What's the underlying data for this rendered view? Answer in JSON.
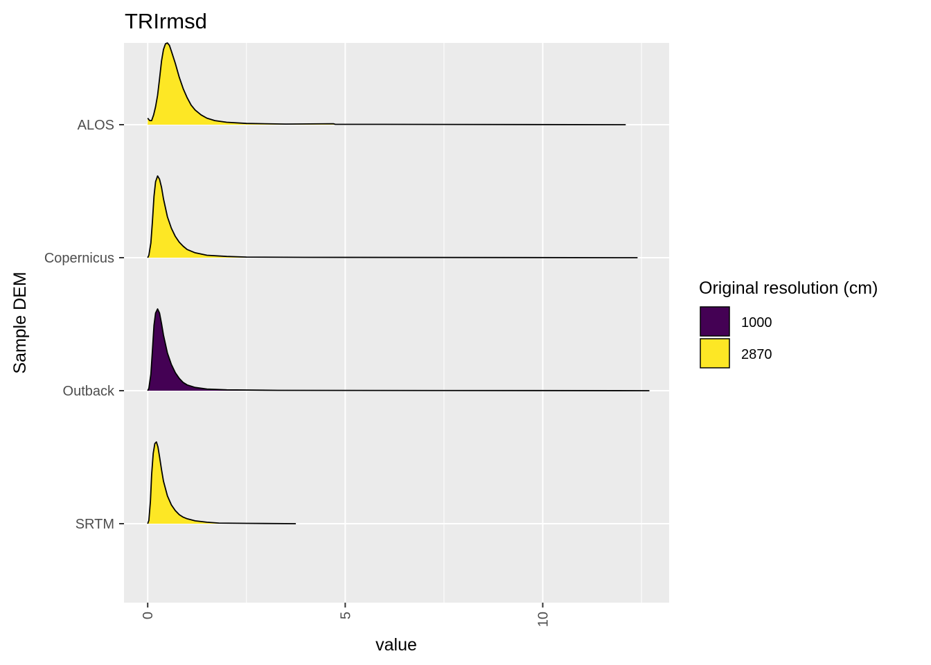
{
  "chart_data": {
    "type": "ridgeline",
    "title": "TRIrmsd",
    "xlabel": "value",
    "ylabel": "Sample DEM",
    "xlim": [
      -0.6,
      13.2
    ],
    "x_ticks": [
      0,
      5,
      10
    ],
    "x_tick_labels": [
      "0",
      "5",
      "10"
    ],
    "x_minor_ticks": [
      2.5,
      7.5,
      12.5
    ],
    "x_tick_label_rotation": -90,
    "categories": [
      "ALOS",
      "Copernicus",
      "Outback",
      "SRTM"
    ],
    "grid": true,
    "legend": {
      "title": "Original resolution (cm)",
      "placement": "right",
      "entries": [
        {
          "label": "1000",
          "color": "#440154"
        },
        {
          "label": "2870",
          "color": "#FDE725"
        }
      ]
    },
    "series": [
      {
        "category": "ALOS",
        "group": "2870",
        "color": "#FDE725",
        "x_range": [
          0.0,
          12.1
        ],
        "density": [
          [
            0.0,
            0.08
          ],
          [
            0.05,
            0.05
          ],
          [
            0.1,
            0.05
          ],
          [
            0.15,
            0.12
          ],
          [
            0.2,
            0.22
          ],
          [
            0.25,
            0.36
          ],
          [
            0.3,
            0.56
          ],
          [
            0.35,
            0.78
          ],
          [
            0.4,
            0.92
          ],
          [
            0.45,
            0.99
          ],
          [
            0.5,
            1.0
          ],
          [
            0.55,
            0.97
          ],
          [
            0.6,
            0.9
          ],
          [
            0.7,
            0.75
          ],
          [
            0.8,
            0.58
          ],
          [
            0.9,
            0.44
          ],
          [
            1.0,
            0.33
          ],
          [
            1.1,
            0.24
          ],
          [
            1.2,
            0.18
          ],
          [
            1.35,
            0.12
          ],
          [
            1.5,
            0.08
          ],
          [
            1.7,
            0.05
          ],
          [
            2.0,
            0.03
          ],
          [
            2.5,
            0.015
          ],
          [
            3.5,
            0.008
          ],
          [
            4.7,
            0.012
          ],
          [
            4.75,
            0.004
          ],
          [
            6.0,
            0.004
          ],
          [
            12.1,
            0.0
          ]
        ]
      },
      {
        "category": "Copernicus",
        "group": "2870",
        "color": "#FDE725",
        "x_range": [
          0.0,
          12.4
        ],
        "density": [
          [
            0.0,
            0.0
          ],
          [
            0.03,
            0.03
          ],
          [
            0.08,
            0.18
          ],
          [
            0.12,
            0.45
          ],
          [
            0.16,
            0.75
          ],
          [
            0.2,
            0.93
          ],
          [
            0.25,
            1.0
          ],
          [
            0.3,
            0.96
          ],
          [
            0.35,
            0.86
          ],
          [
            0.4,
            0.72
          ],
          [
            0.5,
            0.5
          ],
          [
            0.6,
            0.36
          ],
          [
            0.7,
            0.26
          ],
          [
            0.8,
            0.19
          ],
          [
            0.9,
            0.14
          ],
          [
            1.0,
            0.1
          ],
          [
            1.2,
            0.06
          ],
          [
            1.5,
            0.03
          ],
          [
            2.0,
            0.015
          ],
          [
            2.5,
            0.008
          ],
          [
            4.0,
            0.004
          ],
          [
            12.4,
            0.0
          ]
        ]
      },
      {
        "category": "Outback",
        "group": "1000",
        "color": "#440154",
        "x_range": [
          0.0,
          12.7
        ],
        "density": [
          [
            0.0,
            0.0
          ],
          [
            0.03,
            0.03
          ],
          [
            0.08,
            0.2
          ],
          [
            0.12,
            0.5
          ],
          [
            0.16,
            0.8
          ],
          [
            0.2,
            0.95
          ],
          [
            0.25,
            1.0
          ],
          [
            0.3,
            0.95
          ],
          [
            0.35,
            0.82
          ],
          [
            0.4,
            0.68
          ],
          [
            0.5,
            0.46
          ],
          [
            0.6,
            0.32
          ],
          [
            0.7,
            0.22
          ],
          [
            0.8,
            0.15
          ],
          [
            0.9,
            0.1
          ],
          [
            1.0,
            0.07
          ],
          [
            1.2,
            0.04
          ],
          [
            1.5,
            0.02
          ],
          [
            2.0,
            0.01
          ],
          [
            3.3,
            0.004
          ],
          [
            12.7,
            0.0
          ]
        ]
      },
      {
        "category": "SRTM",
        "group": "2870",
        "color": "#FDE725",
        "x_range": [
          0.0,
          3.75
        ],
        "density": [
          [
            0.0,
            0.0
          ],
          [
            0.03,
            0.04
          ],
          [
            0.07,
            0.28
          ],
          [
            0.1,
            0.6
          ],
          [
            0.14,
            0.86
          ],
          [
            0.18,
            0.98
          ],
          [
            0.22,
            1.0
          ],
          [
            0.26,
            0.94
          ],
          [
            0.3,
            0.82
          ],
          [
            0.35,
            0.66
          ],
          [
            0.4,
            0.52
          ],
          [
            0.5,
            0.34
          ],
          [
            0.6,
            0.23
          ],
          [
            0.7,
            0.16
          ],
          [
            0.8,
            0.11
          ],
          [
            0.9,
            0.08
          ],
          [
            1.0,
            0.06
          ],
          [
            1.2,
            0.035
          ],
          [
            1.5,
            0.018
          ],
          [
            1.8,
            0.008
          ],
          [
            2.5,
            0.004
          ],
          [
            3.75,
            0.0
          ]
        ]
      }
    ]
  }
}
